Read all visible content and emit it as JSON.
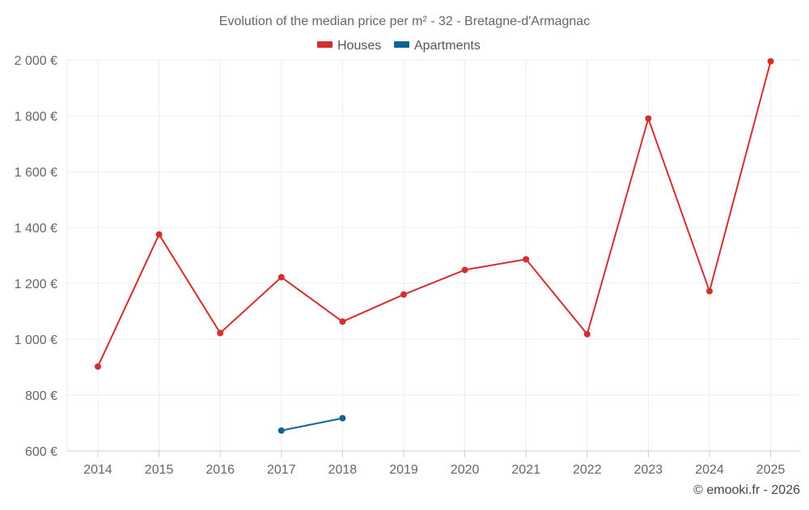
{
  "chart_data": {
    "type": "line",
    "title": "Evolution of the median price per m² - 32 - Bretagne-d'Armagnac",
    "xlabel": "",
    "ylabel": "",
    "categories": [
      "2014",
      "2015",
      "2016",
      "2017",
      "2018",
      "2019",
      "2020",
      "2021",
      "2022",
      "2023",
      "2024",
      "2025"
    ],
    "ylim": [
      600,
      2000
    ],
    "yticks": [
      600,
      800,
      1000,
      1200,
      1400,
      1600,
      1800,
      2000
    ],
    "y_tick_labels": [
      "600 €",
      "800 €",
      "1 000 €",
      "1 200 €",
      "1 400 €",
      "1 600 €",
      "1 800 €",
      "2 000 €"
    ],
    "grid": true,
    "legend_position": "top-center",
    "series": [
      {
        "name": "Houses",
        "color": "#d32f2f",
        "values": [
          902,
          1375,
          1022,
          1222,
          1063,
          1160,
          1248,
          1286,
          1018,
          1790,
          1172,
          1995
        ]
      },
      {
        "name": "Apartments",
        "color": "#0d6494",
        "values": [
          null,
          null,
          null,
          673,
          717,
          null,
          null,
          null,
          null,
          null,
          null,
          null
        ]
      }
    ]
  },
  "copyright": "© emooki.fr - 2026"
}
